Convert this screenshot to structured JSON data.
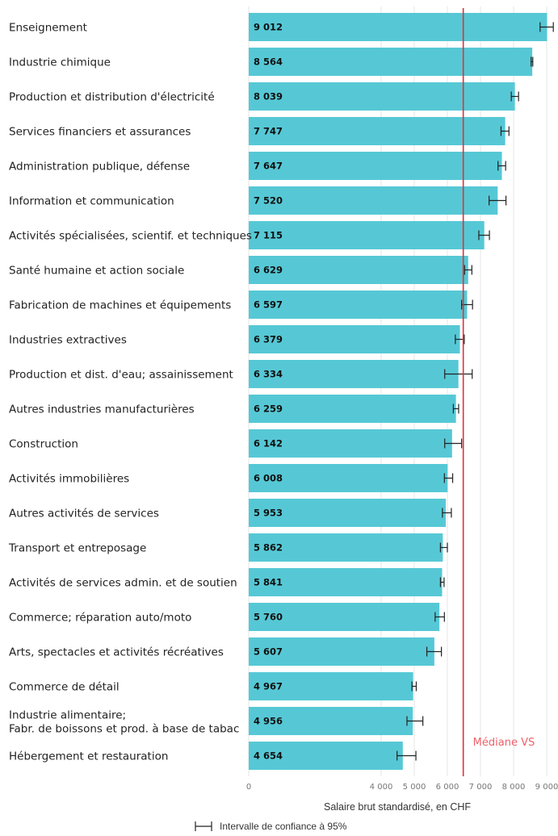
{
  "chart_data": {
    "type": "bar",
    "orientation": "horizontal",
    "categories": [
      "Enseignement",
      "Industrie chimique",
      "Production et distribution d'électricité",
      "Services financiers et assurances",
      "Administration publique, défense",
      "Information et communication",
      "Activités spécialisées, scientif. et techniques",
      "Santé humaine et action sociale",
      "Fabrication de machines et équipements",
      "Industries extractives",
      "Production et dist. d'eau; assainissement",
      "Autres industries manufacturières",
      "Construction",
      "Activités immobilières",
      "Autres activités de services",
      "Transport et entreposage",
      "Activités de services admin. et de soutien",
      "Commerce; réparation auto/moto",
      "Arts, spectacles et activités récréatives",
      "Commerce de détail",
      "Industrie alimentaire;\nFabr. de boissons et prod. à base de tabac",
      "Hébergement et restauration"
    ],
    "values": [
      9012,
      8564,
      8039,
      7747,
      7647,
      7520,
      7115,
      6629,
      6597,
      6379,
      6334,
      6259,
      6142,
      6008,
      5953,
      5862,
      5841,
      5760,
      5607,
      4967,
      4956,
      4654
    ],
    "value_labels": [
      "9 012",
      "8 564",
      "8 039",
      "7 747",
      "7 647",
      "7 520",
      "7 115",
      "6 629",
      "6 597",
      "6 379",
      "6 334",
      "6 259",
      "6 142",
      "6 008",
      "5 953",
      "5 862",
      "5 841",
      "5 760",
      "5 607",
      "4 967",
      "4 956",
      "4 654"
    ],
    "ci_low": [
      8800,
      8530,
      7930,
      7620,
      7530,
      7260,
      6950,
      6520,
      6430,
      6240,
      5920,
      6180,
      5920,
      5910,
      5850,
      5790,
      5790,
      5630,
      5380,
      4930,
      4780,
      4480
    ],
    "ci_high": [
      9200,
      8580,
      8150,
      7860,
      7760,
      7770,
      7270,
      6740,
      6760,
      6510,
      6750,
      6340,
      6430,
      6160,
      6120,
      6000,
      5900,
      5910,
      5820,
      5060,
      5260,
      5050
    ],
    "xlabel": "Salaire brut standardisé, en CHF",
    "xticks": [
      0,
      4000,
      5000,
      6000,
      7000,
      8000,
      9000
    ],
    "xtick_labels": [
      "0",
      "4 000",
      "5 000",
      "6 000",
      "7 000",
      "8 000",
      "9 000"
    ],
    "median": {
      "value": 6480,
      "label": "Médiane VS"
    },
    "legend": {
      "ci_label": "Intervalle de confiance à 95%",
      "placement": "bottom"
    },
    "grid": true,
    "colors": {
      "bar": "#56c8d5",
      "median": "#e0313a",
      "median_text": "#f0606a",
      "errorbar": "#222222",
      "grid": "#e4e4e4"
    }
  }
}
